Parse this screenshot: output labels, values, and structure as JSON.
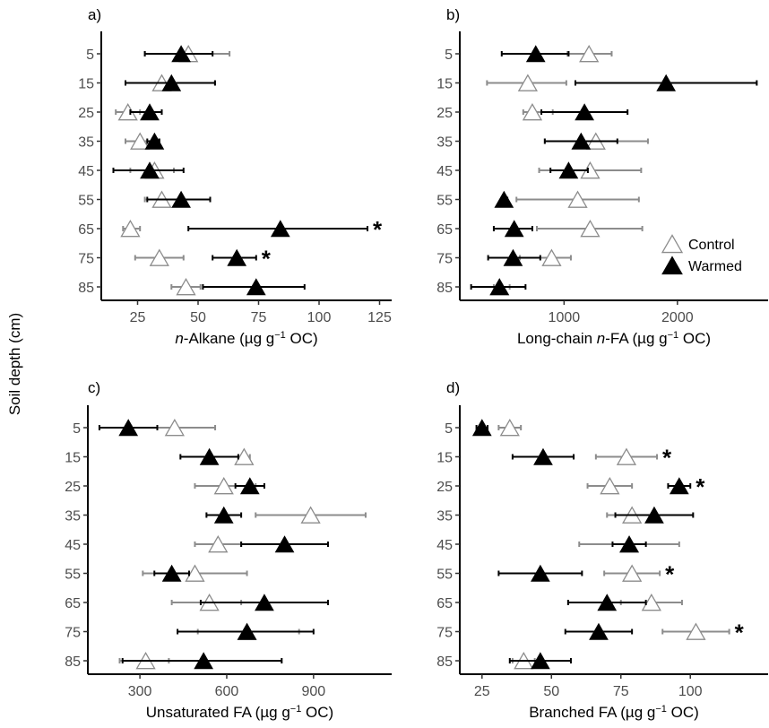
{
  "ylabel": "Soil depth (cm)",
  "legend": {
    "position": "right-inside-panel-b",
    "items": [
      {
        "label": "Control",
        "marker": "open-triangle",
        "color": "#8c8c8c"
      },
      {
        "label": "Warmed",
        "marker": "filled-triangle",
        "color": "#000000"
      }
    ]
  },
  "significance_marker": "*",
  "chart_data": [
    {
      "type": "scatter",
      "panel": "a)",
      "xlabel": [
        "n",
        "-Alkane (µg g",
        "−1",
        " OC)"
      ],
      "xlim": [
        10,
        130
      ],
      "xticks": [
        25,
        50,
        75,
        100,
        125
      ],
      "xtick_labels": [
        "25",
        "50",
        "75",
        "100",
        "125"
      ],
      "categories": [
        "5",
        "15",
        "25",
        "35",
        "45",
        "55",
        "65",
        "75",
        "85"
      ],
      "series": [
        {
          "name": "Control",
          "color": "#8c8c8c",
          "values": [
            46,
            35,
            21,
            26,
            32,
            35,
            22,
            34,
            45
          ],
          "err_low": [
            28,
            20,
            16,
            20,
            22,
            28,
            19,
            24,
            39
          ],
          "err_high": [
            63,
            57,
            26,
            34,
            40,
            44,
            26,
            44,
            51
          ]
        },
        {
          "name": "Warmed",
          "color": "#000000",
          "values": [
            43,
            39,
            30,
            32,
            30,
            43,
            84,
            66,
            74
          ],
          "err_low": [
            28,
            20,
            22,
            29,
            15,
            29,
            46,
            56,
            52
          ],
          "err_high": [
            56,
            57,
            35,
            34,
            44,
            55,
            120,
            74,
            94
          ]
        }
      ],
      "significant": [
        "65",
        "75"
      ]
    },
    {
      "type": "scatter",
      "panel": "b)",
      "xlabel": [
        "Long-chain ",
        "n",
        "-FA (µg g",
        "−1",
        " OC)"
      ],
      "xlim": [
        80,
        2800
      ],
      "xticks": [
        1000,
        2000
      ],
      "xtick_labels": [
        "1000",
        "2000"
      ],
      "categories": [
        "5",
        "15",
        "25",
        "35",
        "45",
        "55",
        "65",
        "75",
        "85"
      ],
      "series": [
        {
          "name": "Control",
          "color": "#8c8c8c",
          "values": [
            1220,
            680,
            720,
            1280,
            1230,
            1120,
            1230,
            890,
            430
          ],
          "err_low": [
            1030,
            320,
            640,
            830,
            780,
            580,
            760,
            610,
            380
          ],
          "err_high": [
            1420,
            1020,
            900,
            1740,
            1680,
            1660,
            1690,
            1060,
            520
          ]
        },
        {
          "name": "Warmed",
          "color": "#000000",
          "values": [
            750,
            1900,
            1180,
            1150,
            1040,
            470,
            560,
            550,
            430
          ],
          "err_low": [
            450,
            1100,
            800,
            830,
            880,
            450,
            380,
            330,
            180
          ],
          "err_high": [
            1040,
            2700,
            1560,
            1470,
            1210,
            500,
            720,
            790,
            660
          ]
        }
      ],
      "significant": []
    },
    {
      "type": "scatter",
      "panel": "c)",
      "xlabel": [
        "Unsaturated FA (µg g",
        "−1",
        " OC)"
      ],
      "xlim": [
        120,
        1170
      ],
      "xticks": [
        300,
        600,
        900
      ],
      "xtick_labels": [
        "300",
        "600",
        "900"
      ],
      "categories": [
        "5",
        "15",
        "25",
        "35",
        "45",
        "55",
        "65",
        "75",
        "85"
      ],
      "series": [
        {
          "name": "Control",
          "color": "#8c8c8c",
          "values": [
            420,
            660,
            590,
            890,
            570,
            490,
            540,
            670,
            320
          ],
          "err_low": [
            270,
            640,
            490,
            700,
            490,
            310,
            410,
            500,
            230
          ],
          "err_high": [
            560,
            680,
            700,
            1080,
            650,
            670,
            650,
            850,
            400
          ]
        },
        {
          "name": "Warmed",
          "color": "#000000",
          "values": [
            260,
            540,
            680,
            590,
            800,
            410,
            730,
            670,
            520
          ],
          "err_low": [
            160,
            440,
            630,
            530,
            650,
            350,
            510,
            430,
            240
          ],
          "err_high": [
            360,
            640,
            730,
            650,
            950,
            470,
            950,
            900,
            790
          ]
        }
      ],
      "significant": []
    },
    {
      "type": "scatter",
      "panel": "d)",
      "xlabel": [
        "Branched FA (µg g",
        "−1",
        " OC)"
      ],
      "xlim": [
        17,
        128
      ],
      "xticks": [
        25,
        50,
        75,
        100
      ],
      "xtick_labels": [
        "25",
        "50",
        "75",
        "100"
      ],
      "categories": [
        "5",
        "15",
        "25",
        "35",
        "45",
        "55",
        "65",
        "75",
        "85"
      ],
      "series": [
        {
          "name": "Control",
          "color": "#8c8c8c",
          "values": [
            35,
            77,
            71,
            79,
            78,
            79,
            86,
            102,
            40
          ],
          "err_low": [
            31,
            66,
            63,
            70,
            60,
            69,
            75,
            90,
            36
          ],
          "err_high": [
            39,
            88,
            79,
            88,
            96,
            89,
            97,
            114,
            44
          ]
        },
        {
          "name": "Warmed",
          "color": "#000000",
          "values": [
            25,
            47,
            96,
            87,
            78,
            46,
            70,
            67,
            46
          ],
          "err_low": [
            23,
            36,
            92,
            73,
            72,
            31,
            56,
            55,
            35
          ],
          "err_high": [
            27,
            58,
            100,
            101,
            84,
            61,
            84,
            79,
            57
          ]
        }
      ],
      "significant": [
        "15",
        "25",
        "55",
        "75"
      ]
    }
  ]
}
